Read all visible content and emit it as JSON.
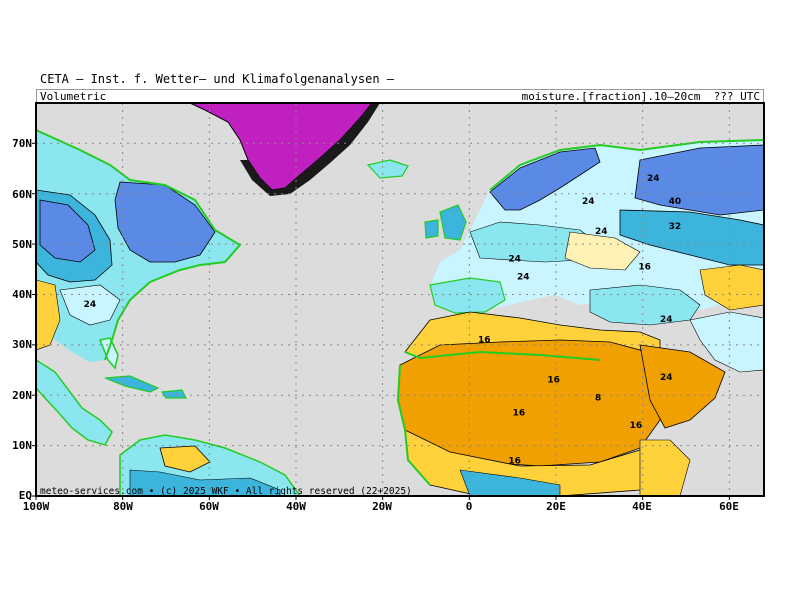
{
  "header": {
    "title": "CETA — Inst. f. Wetter— und Klimafolgenanalysen —",
    "left_label": "Volumetric",
    "right_label": "moisture.[fraction].10—20cm  ??? UTC"
  },
  "axes": {
    "y_labels": [
      "70N",
      "60N",
      "50N",
      "40N",
      "30N",
      "20N",
      "10N",
      "EQ"
    ],
    "x_labels": [
      "100W",
      "80W",
      "60W",
      "40W",
      "20W",
      "0",
      "20E",
      "40E",
      "60E"
    ]
  },
  "footer": {
    "copyright": "meteo-services.com • (c) 2025 WKF • All rights reserved (22+2025)"
  },
  "contour_labels": [
    {
      "text": "24",
      "lon": -89,
      "lat": 37.5
    },
    {
      "text": "24",
      "lon": 26,
      "lat": 58
    },
    {
      "text": "24",
      "lon": 41,
      "lat": 62.5
    },
    {
      "text": "40",
      "lon": 46,
      "lat": 58
    },
    {
      "text": "32",
      "lon": 46,
      "lat": 53
    },
    {
      "text": "24",
      "lon": 29,
      "lat": 52
    },
    {
      "text": "24",
      "lon": 9,
      "lat": 46.5
    },
    {
      "text": "24",
      "lon": 11,
      "lat": 43
    },
    {
      "text": "16",
      "lon": 39,
      "lat": 45
    },
    {
      "text": "24",
      "lon": 44,
      "lat": 34.5
    },
    {
      "text": "16",
      "lon": 2,
      "lat": 30.5
    },
    {
      "text": "8",
      "lon": 29,
      "lat": 19
    },
    {
      "text": "16",
      "lon": 18,
      "lat": 22.5
    },
    {
      "text": "16",
      "lon": 10,
      "lat": 16
    },
    {
      "text": "16",
      "lon": 37,
      "lat": 13.5
    },
    {
      "text": "24",
      "lon": 44,
      "lat": 23
    },
    {
      "text": "16",
      "lon": 9,
      "lat": 6.5
    }
  ],
  "colors": {
    "ocean": "#dcdcdc",
    "very_dry": "#f0a000",
    "dry": "#ffd23c",
    "semi_dry": "#fff2b4",
    "moderate": "#c8f5ff",
    "moist": "#8ce6f0",
    "wet": "#3cb4dc",
    "very_wet": "#5a8ae6",
    "ice": "#c020c0",
    "coast": "#22cc22"
  }
}
